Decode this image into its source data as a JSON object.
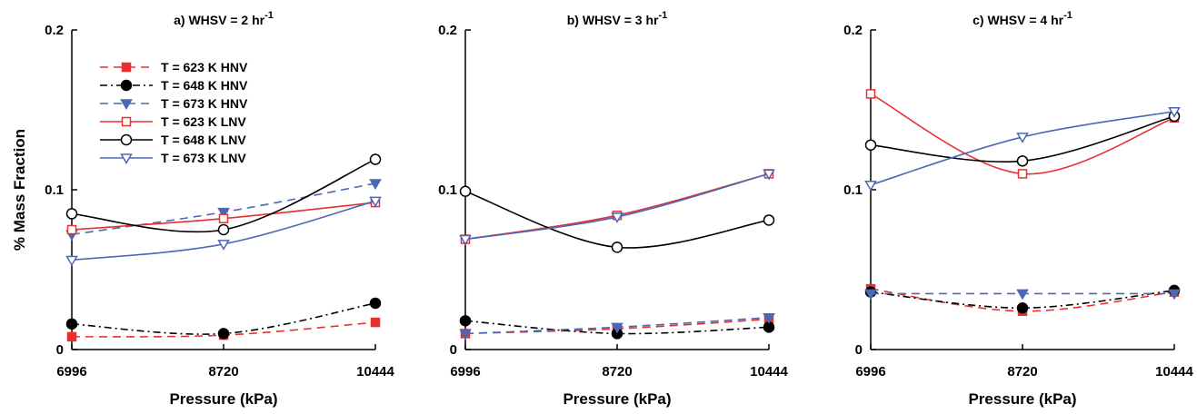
{
  "chart_data": [
    {
      "type": "line",
      "title": "a) WHSV = 2 hr",
      "title_sup": "-1",
      "xlabel": "Pressure (kPa)",
      "ylabel": "% Mass Fraction",
      "x": [
        6996,
        8720,
        10444
      ],
      "x_ticks": [
        "6996",
        "8720",
        "10444"
      ],
      "xlim": [
        6996,
        10444
      ],
      "y_ticks": [
        "0",
        "0.1",
        "0.2"
      ],
      "ylim": [
        0,
        0.2
      ],
      "legend_position": "top-left",
      "series": [
        {
          "name": "T = 623 K HNV",
          "values": [
            0.008,
            0.009,
            0.017
          ],
          "color": "#e8312f",
          "dash": "dashed",
          "marker": "square-filled"
        },
        {
          "name": "T = 648 K HNV",
          "values": [
            0.016,
            0.01,
            0.029
          ],
          "color": "#000000",
          "dash": "dashdot",
          "marker": "circle-filled"
        },
        {
          "name": "T = 673 K HNV",
          "values": [
            0.072,
            0.086,
            0.104
          ],
          "color": "#4a68b5",
          "dash": "dashed",
          "marker": "triangle-filled"
        },
        {
          "name": "T = 623 K LNV",
          "values": [
            0.075,
            0.082,
            0.092
          ],
          "color": "#e8312f",
          "dash": "solid",
          "marker": "square-open"
        },
        {
          "name": "T = 648 K LNV",
          "values": [
            0.085,
            0.075,
            0.119
          ],
          "color": "#000000",
          "dash": "solid",
          "marker": "circle-open"
        },
        {
          "name": "T = 673 K LNV",
          "values": [
            0.056,
            0.066,
            0.093
          ],
          "color": "#4a68b5",
          "dash": "solid",
          "marker": "triangle-open"
        }
      ]
    },
    {
      "type": "line",
      "title": "b) WHSV = 3 hr",
      "title_sup": "-1",
      "xlabel": "Pressure (kPa)",
      "ylabel": "",
      "x": [
        6996,
        8720,
        10444
      ],
      "x_ticks": [
        "6996",
        "8720",
        "10444"
      ],
      "xlim": [
        6996,
        10444
      ],
      "y_ticks": [
        "0",
        "0.1",
        "0.2"
      ],
      "ylim": [
        0,
        0.2
      ],
      "series": [
        {
          "name": "T = 623 K HNV",
          "values": [
            0.01,
            0.013,
            0.019
          ],
          "color": "#e8312f",
          "dash": "dashed",
          "marker": "square-filled"
        },
        {
          "name": "T = 648 K HNV",
          "values": [
            0.018,
            0.01,
            0.014
          ],
          "color": "#000000",
          "dash": "dashdot",
          "marker": "circle-filled"
        },
        {
          "name": "T = 673 K HNV",
          "values": [
            0.01,
            0.014,
            0.02
          ],
          "color": "#4a68b5",
          "dash": "dashed",
          "marker": "triangle-filled"
        },
        {
          "name": "T = 623 K LNV",
          "values": [
            0.069,
            0.084,
            0.11
          ],
          "color": "#e8312f",
          "dash": "solid",
          "marker": "square-open"
        },
        {
          "name": "T = 648 K LNV",
          "values": [
            0.099,
            0.064,
            0.081
          ],
          "color": "#000000",
          "dash": "solid",
          "marker": "circle-open"
        },
        {
          "name": "T = 673 K LNV",
          "values": [
            0.069,
            0.083,
            0.11
          ],
          "color": "#4a68b5",
          "dash": "solid",
          "marker": "triangle-open"
        }
      ]
    },
    {
      "type": "line",
      "title": "c) WHSV = 4 hr",
      "title_sup": "-1",
      "xlabel": "Pressure (kPa)",
      "ylabel": "",
      "x": [
        6996,
        8720,
        10444
      ],
      "x_ticks": [
        "6996",
        "8720",
        "10444"
      ],
      "xlim": [
        6996,
        10444
      ],
      "y_ticks": [
        "0",
        "0.1",
        "0.2"
      ],
      "ylim": [
        0,
        0.2
      ],
      "series": [
        {
          "name": "T = 623 K HNV",
          "values": [
            0.038,
            0.024,
            0.036
          ],
          "color": "#e8312f",
          "dash": "dashed",
          "marker": "square-filled"
        },
        {
          "name": "T = 648 K HNV",
          "values": [
            0.036,
            0.026,
            0.037
          ],
          "color": "#000000",
          "dash": "dashdot",
          "marker": "circle-filled"
        },
        {
          "name": "T = 673 K HNV",
          "values": [
            0.035,
            0.035,
            0.035
          ],
          "color": "#4a68b5",
          "dash": "dashed",
          "marker": "triangle-filled"
        },
        {
          "name": "T = 623 K LNV",
          "values": [
            0.16,
            0.11,
            0.145
          ],
          "color": "#e8312f",
          "dash": "solid",
          "marker": "square-open"
        },
        {
          "name": "T = 648 K LNV",
          "values": [
            0.128,
            0.118,
            0.146
          ],
          "color": "#000000",
          "dash": "solid",
          "marker": "circle-open"
        },
        {
          "name": "T = 673 K LNV",
          "values": [
            0.103,
            0.133,
            0.149
          ],
          "color": "#4a68b5",
          "dash": "solid",
          "marker": "triangle-open"
        }
      ]
    }
  ]
}
